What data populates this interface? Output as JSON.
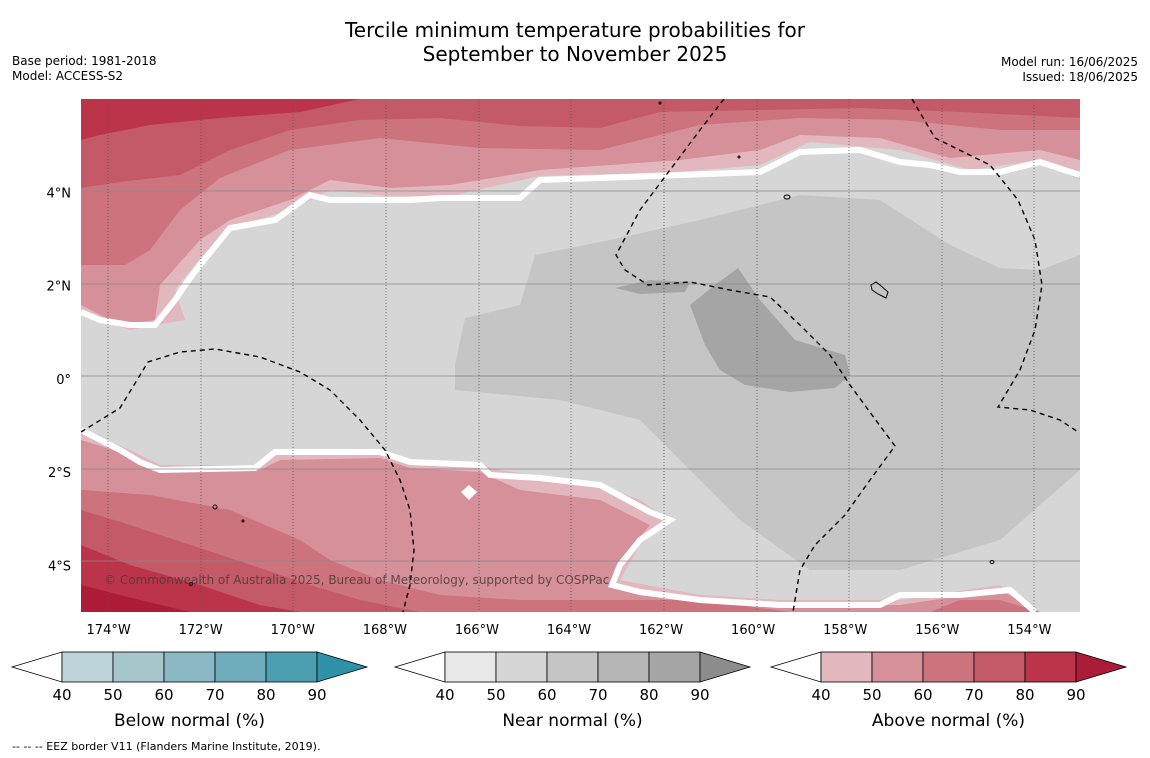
{
  "title_line1": "Tercile minimum temperature probabilities for",
  "title_line2": "September to November 2025",
  "base_period": "Base period: 1981-2018",
  "model": "Model: ACCESS-S2",
  "model_run": "Model run: 16/06/2025",
  "issued": "Issued: 18/06/2025",
  "copyright": "© Commonwealth of Australia 2025, Bureau of Meteorology, supported by COSPPac",
  "footnote": "--  --  -- EEZ border V11 (Flanders Marine Institute, 2019).",
  "map": {
    "lon_range": [
      -174.6,
      -152.9
    ],
    "lat_range": [
      -5.0,
      6.0
    ],
    "lon_ticks": [
      {
        "value": -174,
        "label": "174°W"
      },
      {
        "value": -172,
        "label": "172°W"
      },
      {
        "value": -170,
        "label": "170°W"
      },
      {
        "value": -168,
        "label": "168°W"
      },
      {
        "value": -166,
        "label": "166°W"
      },
      {
        "value": -164,
        "label": "164°W"
      },
      {
        "value": -162,
        "label": "162°W"
      },
      {
        "value": -160,
        "label": "160°W"
      },
      {
        "value": -158,
        "label": "158°W"
      },
      {
        "value": -156,
        "label": "156°W"
      },
      {
        "value": -154,
        "label": "154°W"
      }
    ],
    "lat_ticks": [
      {
        "value": 4,
        "label": "4°N"
      },
      {
        "value": 2,
        "label": "2°N"
      },
      {
        "value": 0,
        "label": "0°"
      },
      {
        "value": -2,
        "label": "2°S"
      },
      {
        "value": -4,
        "label": "4°S"
      }
    ]
  },
  "colorbars": [
    {
      "title": "Below normal (%)",
      "ticks": [
        "40",
        "50",
        "60",
        "70",
        "80",
        "90"
      ],
      "colors": [
        "#bdd4db",
        "#a6c6cc",
        "#8ab8c4",
        "#6eacbb",
        "#4c9fb0",
        "#2f92a8"
      ]
    },
    {
      "title": "Near normal (%)",
      "ticks": [
        "40",
        "50",
        "60",
        "70",
        "80",
        "90"
      ],
      "colors": [
        "#e8e8e8",
        "#d6d6d6",
        "#c5c5c5",
        "#b5b5b5",
        "#a5a5a5",
        "#8c8c8c"
      ]
    },
    {
      "title": "Above normal (%)",
      "ticks": [
        "40",
        "50",
        "60",
        "70",
        "80",
        "90"
      ],
      "colors": [
        "#e3b7be",
        "#d6909a",
        "#cc737d",
        "#c45a67",
        "#bb344a",
        "#ac1c38"
      ]
    }
  ]
}
